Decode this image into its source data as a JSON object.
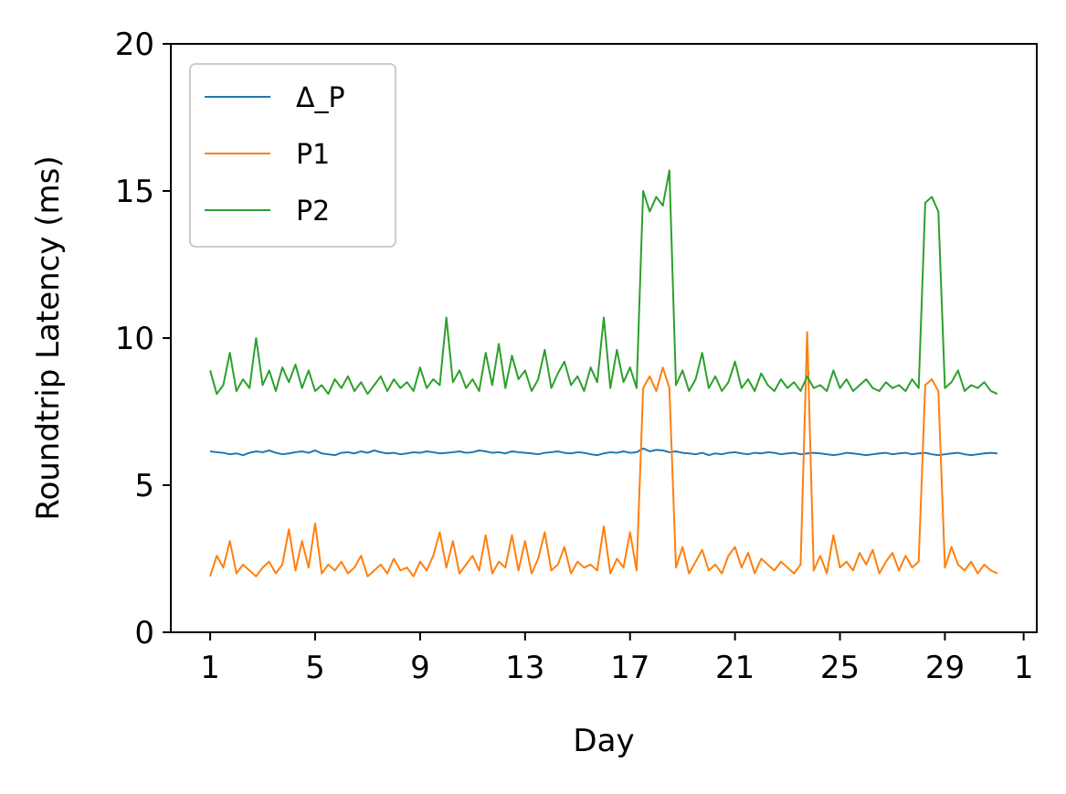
{
  "chart_data": {
    "type": "line",
    "xlabel": "Day",
    "ylabel": "Roundtrip Latency (ms)",
    "x": [
      1,
      1.25,
      1.5,
      1.75,
      2,
      2.25,
      2.5,
      2.75,
      3,
      3.25,
      3.5,
      3.75,
      4,
      4.25,
      4.5,
      4.75,
      5,
      5.25,
      5.5,
      5.75,
      6,
      6.25,
      6.5,
      6.75,
      7,
      7.25,
      7.5,
      7.75,
      8,
      8.25,
      8.5,
      8.75,
      9,
      9.25,
      9.5,
      9.75,
      10,
      10.25,
      10.5,
      10.75,
      11,
      11.25,
      11.5,
      11.75,
      12,
      12.25,
      12.5,
      12.75,
      13,
      13.25,
      13.5,
      13.75,
      14,
      14.25,
      14.5,
      14.75,
      15,
      15.25,
      15.5,
      15.75,
      16,
      16.25,
      16.5,
      16.75,
      17,
      17.25,
      17.5,
      17.75,
      18,
      18.25,
      18.5,
      18.75,
      19,
      19.25,
      19.5,
      19.75,
      20,
      20.25,
      20.5,
      20.75,
      21,
      21.25,
      21.5,
      21.75,
      22,
      22.25,
      22.5,
      22.75,
      23,
      23.25,
      23.5,
      23.75,
      24,
      24.25,
      24.5,
      24.75,
      25,
      25.25,
      25.5,
      25.75,
      26,
      26.25,
      26.5,
      26.75,
      27,
      27.25,
      27.5,
      27.75,
      28,
      28.25,
      28.5,
      28.75,
      29,
      29.25,
      29.5,
      29.75,
      30,
      30.25,
      30.5,
      30.75,
      31
    ],
    "series": [
      {
        "name": "Δ_P",
        "color": "#1f77b4",
        "values": [
          6.15,
          6.12,
          6.1,
          6.05,
          6.08,
          6.02,
          6.1,
          6.15,
          6.12,
          6.18,
          6.1,
          6.05,
          6.08,
          6.12,
          6.15,
          6.1,
          6.18,
          6.08,
          6.05,
          6.02,
          6.1,
          6.12,
          6.08,
          6.15,
          6.1,
          6.18,
          6.12,
          6.08,
          6.1,
          6.05,
          6.08,
          6.12,
          6.1,
          6.15,
          6.12,
          6.08,
          6.1,
          6.12,
          6.15,
          6.1,
          6.12,
          6.18,
          6.15,
          6.1,
          6.12,
          6.08,
          6.15,
          6.12,
          6.1,
          6.08,
          6.05,
          6.1,
          6.12,
          6.15,
          6.1,
          6.08,
          6.12,
          6.1,
          6.05,
          6.02,
          6.08,
          6.12,
          6.1,
          6.15,
          6.1,
          6.12,
          6.25,
          6.15,
          6.2,
          6.18,
          6.12,
          6.15,
          6.1,
          6.08,
          6.05,
          6.1,
          6.02,
          6.08,
          6.05,
          6.1,
          6.12,
          6.08,
          6.05,
          6.1,
          6.08,
          6.12,
          6.1,
          6.05,
          6.08,
          6.1,
          6.05,
          6.08,
          6.1,
          6.08,
          6.05,
          6.02,
          6.05,
          6.1,
          6.08,
          6.05,
          6.02,
          6.05,
          6.08,
          6.1,
          6.05,
          6.08,
          6.1,
          6.05,
          6.08,
          6.1,
          6.05,
          6.02,
          6.05,
          6.08,
          6.1,
          6.05,
          6.02,
          6.05,
          6.08,
          6.1,
          6.08
        ]
      },
      {
        "name": "P1",
        "color": "#ff7f0e",
        "values": [
          1.9,
          2.6,
          2.2,
          3.1,
          2.0,
          2.3,
          2.1,
          1.9,
          2.2,
          2.4,
          2.0,
          2.3,
          3.5,
          2.1,
          3.1,
          2.2,
          3.7,
          2.0,
          2.3,
          2.1,
          2.4,
          2.0,
          2.2,
          2.6,
          1.9,
          2.1,
          2.3,
          2.0,
          2.5,
          2.1,
          2.2,
          1.9,
          2.4,
          2.1,
          2.6,
          3.4,
          2.2,
          3.1,
          2.0,
          2.3,
          2.6,
          2.1,
          3.3,
          2.0,
          2.4,
          2.2,
          3.3,
          2.1,
          3.1,
          2.0,
          2.5,
          3.4,
          2.1,
          2.3,
          2.9,
          2.0,
          2.4,
          2.2,
          2.3,
          2.1,
          3.6,
          2.0,
          2.5,
          2.2,
          3.4,
          2.1,
          8.3,
          8.7,
          8.2,
          9.0,
          8.3,
          2.2,
          2.9,
          2.0,
          2.4,
          2.8,
          2.1,
          2.3,
          2.0,
          2.6,
          2.9,
          2.2,
          2.7,
          2.0,
          2.5,
          2.3,
          2.1,
          2.4,
          2.2,
          2.0,
          2.3,
          10.2,
          2.1,
          2.6,
          2.0,
          3.3,
          2.2,
          2.4,
          2.1,
          2.7,
          2.3,
          2.8,
          2.0,
          2.4,
          2.7,
          2.1,
          2.6,
          2.2,
          2.4,
          8.4,
          8.6,
          8.2,
          2.2,
          2.9,
          2.3,
          2.1,
          2.4,
          2.0,
          2.3,
          2.1,
          2.0
        ]
      },
      {
        "name": "P2",
        "color": "#2ca02c",
        "values": [
          8.9,
          8.1,
          8.4,
          9.5,
          8.2,
          8.6,
          8.3,
          10.0,
          8.4,
          8.9,
          8.2,
          9.0,
          8.5,
          9.1,
          8.3,
          8.9,
          8.2,
          8.4,
          8.1,
          8.6,
          8.3,
          8.7,
          8.2,
          8.5,
          8.1,
          8.4,
          8.7,
          8.2,
          8.6,
          8.3,
          8.5,
          8.2,
          9.0,
          8.3,
          8.6,
          8.4,
          10.7,
          8.5,
          8.9,
          8.3,
          8.6,
          8.2,
          9.5,
          8.4,
          9.8,
          8.3,
          9.4,
          8.6,
          8.9,
          8.2,
          8.6,
          9.6,
          8.3,
          8.8,
          9.2,
          8.4,
          8.7,
          8.2,
          9.0,
          8.5,
          10.7,
          8.3,
          9.6,
          8.5,
          9.0,
          8.3,
          15.0,
          14.3,
          14.8,
          14.5,
          15.7,
          8.4,
          8.9,
          8.2,
          8.6,
          9.5,
          8.3,
          8.7,
          8.2,
          8.5,
          9.2,
          8.3,
          8.6,
          8.2,
          8.8,
          8.4,
          8.2,
          8.6,
          8.3,
          8.5,
          8.2,
          8.7,
          8.3,
          8.4,
          8.2,
          8.9,
          8.3,
          8.6,
          8.2,
          8.4,
          8.6,
          8.3,
          8.2,
          8.5,
          8.3,
          8.4,
          8.2,
          8.6,
          8.3,
          14.6,
          14.8,
          14.3,
          8.3,
          8.5,
          8.9,
          8.2,
          8.4,
          8.3,
          8.5,
          8.2,
          8.1
        ]
      }
    ],
    "xlim": [
      -0.5,
      32.5
    ],
    "xticks": [
      1,
      5,
      9,
      13,
      17,
      21,
      25,
      29,
      {
        "value": 32,
        "label": "1"
      }
    ],
    "ylim": [
      0,
      20
    ],
    "yticks": [
      0,
      5,
      10,
      15,
      20
    ],
    "legend": "upper left"
  }
}
